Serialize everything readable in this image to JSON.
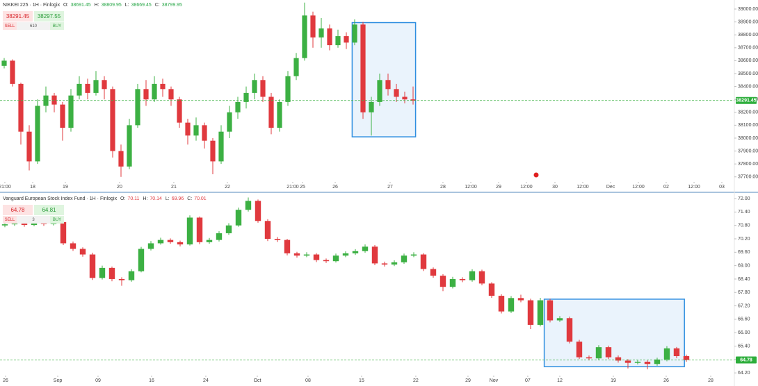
{
  "chart_data": [
    {
      "type": "candlestick",
      "title": "NIKKEI 225 · 1H · Finlogix",
      "ohlc_header": {
        "labels": [
          "O:",
          "H:",
          "L:",
          "C:"
        ],
        "values": [
          38691.45,
          38809.95,
          38669.45,
          38799.95
        ],
        "color": "#2ba84a"
      },
      "trade": {
        "sell_label": "SELL",
        "buy_label": "BUY",
        "sell": 38291.45,
        "buy": 38297.55,
        "spread": 610
      },
      "up_color": "#3cb043",
      "down_color": "#e0393e",
      "xlim": [
        0,
        88
      ],
      "ylim": [
        37661,
        39070
      ],
      "xticks": [
        {
          "value": 0.58,
          "label": "21:00"
        },
        {
          "value": 3.92,
          "label": "18"
        },
        {
          "value": 7.83,
          "label": "19"
        },
        {
          "value": 14.33,
          "label": "20"
        },
        {
          "value": 20.83,
          "label": "21"
        },
        {
          "value": 27.25,
          "label": "22"
        },
        {
          "value": 35.08,
          "label": "21:00"
        },
        {
          "value": 36.25,
          "label": "25"
        },
        {
          "value": 40.17,
          "label": "26"
        },
        {
          "value": 46.75,
          "label": "27"
        },
        {
          "value": 53.08,
          "label": "28"
        },
        {
          "value": 56.42,
          "label": "12:00"
        },
        {
          "value": 59.75,
          "label": "29"
        },
        {
          "value": 63.08,
          "label": "12:00"
        },
        {
          "value": 66.5,
          "label": "30"
        },
        {
          "value": 69.83,
          "label": "12:00"
        },
        {
          "value": 73.17,
          "label": "Dec"
        },
        {
          "value": 76.5,
          "label": "12:00"
        },
        {
          "value": 79.83,
          "label": "02"
        },
        {
          "value": 83.17,
          "label": "12:00"
        },
        {
          "value": 86.5,
          "label": "03"
        }
      ],
      "yticks": [
        {
          "value": 39000,
          "label": "39000.00"
        },
        {
          "value": 38900,
          "label": "38900.00"
        },
        {
          "value": 38800,
          "label": "38800.00"
        },
        {
          "value": 38700,
          "label": "38700.00"
        },
        {
          "value": 38600,
          "label": "38600.00"
        },
        {
          "value": 38500,
          "label": "38500.00"
        },
        {
          "value": 38400,
          "label": "38400.00"
        },
        {
          "value": 38300,
          "label": "38300.00"
        },
        {
          "value": 38200,
          "label": "38200.00"
        },
        {
          "value": 38100,
          "label": "38100.00"
        },
        {
          "value": 38000,
          "label": "38000.00"
        },
        {
          "value": 37900,
          "label": "37900.00"
        },
        {
          "value": 37800,
          "label": "37800.00"
        },
        {
          "value": 37700,
          "label": "37700.00"
        }
      ],
      "box": {
        "x": [
          42.2,
          49.8
        ],
        "y": [
          38010,
          38895
        ],
        "color": "#2e8ee0"
      },
      "ohlc": [
        [
          38560,
          38620,
          38540,
          38600
        ],
        [
          38600,
          38610,
          38400,
          38420
        ],
        [
          38420,
          38430,
          37950,
          38050
        ],
        [
          38050,
          38100,
          37750,
          37820
        ],
        [
          37820,
          38300,
          37800,
          38250
        ],
        [
          38250,
          38400,
          38200,
          38330
        ],
        [
          38330,
          38350,
          38200,
          38260
        ],
        [
          38260,
          38280,
          37980,
          38080
        ],
        [
          38080,
          38380,
          38050,
          38330
        ],
        [
          38330,
          38480,
          38300,
          38420
        ],
        [
          38420,
          38460,
          38300,
          38350
        ],
        [
          38350,
          38520,
          38330,
          38450
        ],
        [
          38450,
          38480,
          38300,
          38380
        ],
        [
          38380,
          38400,
          37850,
          37900
        ],
        [
          37900,
          37950,
          37700,
          37780
        ],
        [
          37780,
          38150,
          37760,
          38100
        ],
        [
          38100,
          38420,
          38080,
          38380
        ],
        [
          38380,
          38450,
          38250,
          38300
        ],
        [
          38300,
          38480,
          38280,
          38420
        ],
        [
          38420,
          38460,
          38320,
          38380
        ],
        [
          38380,
          38400,
          38250,
          38300
        ],
        [
          38300,
          38320,
          38080,
          38120
        ],
        [
          38120,
          38150,
          37950,
          38020
        ],
        [
          38020,
          38160,
          37980,
          38100
        ],
        [
          38100,
          38120,
          37920,
          37980
        ],
        [
          37980,
          38000,
          37720,
          37820
        ],
        [
          37820,
          38100,
          37800,
          38050
        ],
        [
          38050,
          38250,
          38000,
          38200
        ],
        [
          38200,
          38320,
          38150,
          38280
        ],
        [
          38280,
          38400,
          38230,
          38350
        ],
        [
          38350,
          38500,
          38300,
          38450
        ],
        [
          38450,
          38480,
          38280,
          38320
        ],
        [
          38320,
          38350,
          38030,
          38080
        ],
        [
          38080,
          38300,
          38050,
          38280
        ],
        [
          38280,
          38520,
          38250,
          38480
        ],
        [
          38480,
          38660,
          38450,
          38620
        ],
        [
          38620,
          39050,
          38600,
          38950
        ],
        [
          38950,
          38980,
          38700,
          38780
        ],
        [
          38780,
          38930,
          38700,
          38850
        ],
        [
          38850,
          38880,
          38680,
          38720
        ],
        [
          38720,
          38840,
          38700,
          38790
        ],
        [
          38790,
          38820,
          38690,
          38740
        ],
        [
          38740,
          38920,
          38720,
          38880
        ],
        [
          38880,
          38900,
          38150,
          38200
        ],
        [
          38200,
          38320,
          38020,
          38280
        ],
        [
          38280,
          38500,
          38250,
          38450
        ],
        [
          38450,
          38500,
          38330,
          38380
        ],
        [
          38380,
          38420,
          38280,
          38320
        ],
        [
          38320,
          38360,
          38270,
          38300
        ],
        [
          38300,
          38400,
          38260,
          38291.45
        ]
      ]
    },
    {
      "type": "candlestick",
      "title": "Vanguard European Stock Index Fund · 1H · Finlogix",
      "ohlc_header": {
        "labels": [
          "O:",
          "H:",
          "L:",
          "C:"
        ],
        "values": [
          70.11,
          70.14,
          69.96,
          70.01
        ],
        "color": "#e0393e"
      },
      "trade": {
        "sell_label": "SELL",
        "buy_label": "BUY",
        "sell": 64.78,
        "buy": 64.81,
        "spread": 3
      },
      "up_color": "#3cb043",
      "down_color": "#e0393e",
      "xlim": [
        0,
        75.43
      ],
      "ylim": [
        64.08,
        72.22
      ],
      "xticks": [
        {
          "value": 0.57,
          "label": "26"
        },
        {
          "value": 5.93,
          "label": "Sep"
        },
        {
          "value": 10.07,
          "label": "09"
        },
        {
          "value": 15.57,
          "label": "16"
        },
        {
          "value": 21.14,
          "label": "24"
        },
        {
          "value": 26.43,
          "label": "Oct"
        },
        {
          "value": 31.64,
          "label": "08"
        },
        {
          "value": 37.14,
          "label": "15"
        },
        {
          "value": 42.71,
          "label": "22"
        },
        {
          "value": 48.07,
          "label": "29"
        },
        {
          "value": 50.71,
          "label": "Nov"
        },
        {
          "value": 54.21,
          "label": "07"
        },
        {
          "value": 57.5,
          "label": "12"
        },
        {
          "value": 63,
          "label": "19"
        },
        {
          "value": 68.43,
          "label": "26"
        },
        {
          "value": 73,
          "label": "28"
        }
      ],
      "yticks": [
        {
          "value": 72,
          "label": "72.00"
        },
        {
          "value": 71.4,
          "label": "71.40"
        },
        {
          "value": 70.8,
          "label": "70.80"
        },
        {
          "value": 70.2,
          "label": "70.20"
        },
        {
          "value": 69.6,
          "label": "69.60"
        },
        {
          "value": 69,
          "label": "69.00"
        },
        {
          "value": 68.4,
          "label": "68.40"
        },
        {
          "value": 67.8,
          "label": "67.80"
        },
        {
          "value": 67.2,
          "label": "67.20"
        },
        {
          "value": 66.6,
          "label": "66.60"
        },
        {
          "value": 66,
          "label": "66.00"
        },
        {
          "value": 65.4,
          "label": "65.40"
        },
        {
          "value": 64.8,
          "label": "64.80"
        },
        {
          "value": 64.2,
          "label": "64.20"
        }
      ],
      "box": {
        "x": [
          55.9,
          70.3
        ],
        "y": [
          64.48,
          67.5
        ],
        "color": "#2e8ee0"
      },
      "ohlc": [
        [
          70.8,
          70.93,
          70.72,
          70.85
        ],
        [
          70.85,
          70.96,
          70.78,
          70.88
        ],
        [
          70.88,
          70.95,
          70.74,
          70.82
        ],
        [
          70.82,
          70.98,
          70.76,
          70.9
        ],
        [
          70.9,
          70.97,
          70.78,
          70.86
        ],
        [
          70.86,
          71.05,
          70.8,
          70.95
        ],
        [
          70.95,
          70.98,
          69.92,
          70.0
        ],
        [
          70.0,
          70.08,
          69.66,
          69.75
        ],
        [
          69.75,
          69.82,
          69.4,
          69.5
        ],
        [
          69.5,
          69.58,
          68.36,
          68.45
        ],
        [
          68.45,
          69.0,
          68.38,
          68.9
        ],
        [
          68.9,
          68.96,
          68.3,
          68.4
        ],
        [
          68.4,
          68.48,
          68.1,
          68.35
        ],
        [
          68.35,
          68.84,
          68.28,
          68.75
        ],
        [
          68.75,
          69.84,
          68.7,
          69.75
        ],
        [
          69.75,
          70.1,
          69.68,
          70.0
        ],
        [
          70.0,
          70.25,
          69.94,
          70.15
        ],
        [
          70.15,
          70.22,
          69.98,
          70.05
        ],
        [
          70.05,
          70.12,
          69.86,
          69.95
        ],
        [
          69.95,
          71.25,
          69.9,
          71.15
        ],
        [
          71.15,
          71.2,
          69.96,
          70.05
        ],
        [
          70.05,
          70.24,
          69.98,
          70.15
        ],
        [
          70.15,
          70.54,
          70.08,
          70.45
        ],
        [
          70.45,
          70.9,
          70.38,
          70.8
        ],
        [
          70.8,
          71.6,
          70.74,
          71.5
        ],
        [
          71.5,
          72.05,
          71.42,
          71.9
        ],
        [
          71.9,
          71.96,
          70.92,
          71.0
        ],
        [
          71.0,
          71.08,
          70.1,
          70.2
        ],
        [
          70.2,
          70.28,
          70.06,
          70.15
        ],
        [
          70.15,
          70.2,
          69.46,
          69.55
        ],
        [
          69.55,
          69.62,
          69.36,
          69.45
        ],
        [
          69.45,
          69.6,
          69.38,
          69.5
        ],
        [
          69.5,
          69.56,
          69.16,
          69.25
        ],
        [
          69.25,
          69.32,
          69.12,
          69.2
        ],
        [
          69.2,
          69.54,
          69.14,
          69.45
        ],
        [
          69.45,
          69.64,
          69.38,
          69.55
        ],
        [
          69.55,
          69.74,
          69.48,
          69.65
        ],
        [
          69.65,
          69.95,
          69.58,
          69.85
        ],
        [
          69.85,
          69.92,
          69.02,
          69.1
        ],
        [
          69.1,
          69.18,
          68.96,
          69.05
        ],
        [
          69.05,
          69.24,
          68.98,
          69.15
        ],
        [
          69.15,
          69.54,
          69.08,
          69.45
        ],
        [
          69.45,
          69.6,
          69.38,
          69.5
        ],
        [
          69.5,
          69.56,
          68.76,
          68.85
        ],
        [
          68.85,
          68.92,
          68.46,
          68.55
        ],
        [
          68.55,
          68.62,
          67.86,
          68.05
        ],
        [
          68.05,
          68.5,
          67.98,
          68.4
        ],
        [
          68.4,
          68.48,
          68.26,
          68.35
        ],
        [
          68.35,
          68.84,
          68.28,
          68.75
        ],
        [
          68.75,
          68.82,
          68.12,
          68.2
        ],
        [
          68.2,
          68.26,
          67.56,
          67.65
        ],
        [
          67.65,
          67.72,
          66.86,
          66.95
        ],
        [
          66.95,
          67.64,
          66.88,
          67.55
        ],
        [
          67.55,
          67.7,
          67.36,
          67.45
        ],
        [
          67.45,
          67.52,
          66.16,
          66.35
        ],
        [
          66.35,
          67.56,
          66.28,
          67.45
        ],
        [
          67.45,
          67.52,
          66.46,
          66.55
        ],
        [
          66.55,
          66.74,
          66.48,
          66.65
        ],
        [
          66.65,
          66.72,
          65.52,
          65.6
        ],
        [
          65.6,
          65.68,
          64.82,
          64.9
        ],
        [
          64.9,
          64.98,
          64.76,
          64.85
        ],
        [
          64.85,
          65.44,
          64.78,
          65.35
        ],
        [
          65.35,
          65.42,
          64.82,
          64.9
        ],
        [
          64.9,
          64.98,
          64.66,
          64.75
        ],
        [
          64.75,
          64.82,
          64.4,
          64.65
        ],
        [
          64.65,
          64.78,
          64.58,
          64.7
        ],
        [
          64.7,
          64.76,
          64.36,
          64.6
        ],
        [
          64.6,
          64.88,
          64.52,
          64.8
        ],
        [
          64.8,
          65.4,
          64.72,
          65.3
        ],
        [
          65.3,
          65.36,
          64.86,
          64.95
        ],
        [
          64.95,
          65.02,
          64.7,
          64.78
        ]
      ]
    }
  ]
}
